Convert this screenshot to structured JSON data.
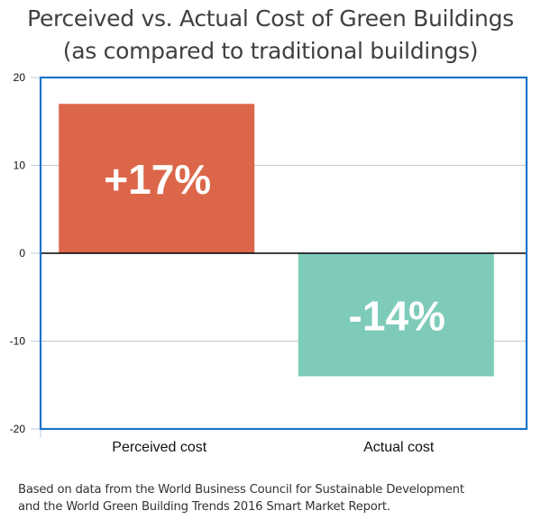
{
  "chart_data": {
    "type": "bar",
    "title": "Perceived vs. Actual Cost of Green Buildings",
    "subtitle": "(as compared to traditional buildings)",
    "categories": [
      "Perceived cost",
      "Actual cost"
    ],
    "values": [
      17,
      -14
    ],
    "data_labels": [
      "+17%",
      "-14%"
    ],
    "colors": [
      "#dc6649",
      "#7ecbba"
    ],
    "xlabel": "",
    "ylabel": "",
    "ylim": [
      -20,
      20
    ],
    "yticks": [
      20,
      10,
      0,
      -10,
      -20
    ],
    "ytick_labels": [
      "20",
      "10",
      "0",
      "-10",
      "-20"
    ],
    "grid": true,
    "legend": "none",
    "frame_color": "#1a73c9",
    "grid_color": "#c8c8c8",
    "zero_line_color": "#000000"
  },
  "footnote": {
    "line1": "Based on data from the World Business Council for Sustainable Development",
    "line2": "and the World Green Building Trends 2016 Smart Market Report."
  }
}
